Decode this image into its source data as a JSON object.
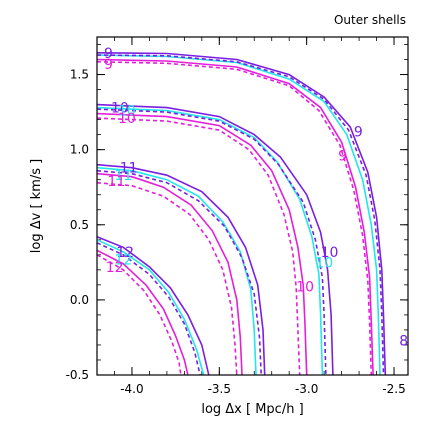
{
  "chart_data": {
    "type": "line",
    "title": "Outer shells",
    "xlabel": "log Δx [ Mpc/h ]",
    "ylabel": "log Δv [ km/s ]",
    "xlim": [
      -4.2,
      -2.42
    ],
    "ylim": [
      -0.5,
      1.75
    ],
    "xticks": [
      "-4.0",
      "-3.5",
      "-3.0",
      "-2.5"
    ],
    "xtick_values": [
      -4.0,
      -3.5,
      -3.0,
      -2.5
    ],
    "yticks": [
      "-0.5",
      "0.0",
      "0.5",
      "1.0",
      "1.5"
    ],
    "ytick_values": [
      -0.5,
      0.0,
      0.5,
      1.0,
      1.5
    ],
    "colors": {
      "purple": "#7a1fe0",
      "cyan": "#22e6ea",
      "magenta": "#e41fd9"
    },
    "series": [
      {
        "level": "9",
        "color": "purple",
        "style": "solid",
        "points": [
          [
            -4.2,
            1.645
          ],
          [
            -3.8,
            1.64
          ],
          [
            -3.4,
            1.6
          ],
          [
            -3.1,
            1.5
          ],
          [
            -2.9,
            1.35
          ],
          [
            -2.75,
            1.15
          ],
          [
            -2.65,
            0.85
          ],
          [
            -2.6,
            0.55
          ],
          [
            -2.57,
            0.2
          ],
          [
            -2.56,
            -0.1
          ],
          [
            -2.55,
            -0.5
          ]
        ]
      },
      {
        "level": "9",
        "color": "cyan",
        "style": "solid",
        "points": [
          [
            -4.2,
            1.63
          ],
          [
            -3.8,
            1.62
          ],
          [
            -3.4,
            1.58
          ],
          [
            -3.1,
            1.47
          ],
          [
            -2.9,
            1.32
          ],
          [
            -2.77,
            1.1
          ],
          [
            -2.68,
            0.8
          ],
          [
            -2.63,
            0.5
          ],
          [
            -2.6,
            0.2
          ],
          [
            -2.59,
            -0.1
          ],
          [
            -2.58,
            -0.5
          ]
        ]
      },
      {
        "level": "9",
        "color": "magenta",
        "style": "solid",
        "points": [
          [
            -4.2,
            1.6
          ],
          [
            -3.8,
            1.59
          ],
          [
            -3.4,
            1.55
          ],
          [
            -3.1,
            1.44
          ],
          [
            -2.92,
            1.28
          ],
          [
            -2.8,
            1.05
          ],
          [
            -2.72,
            0.75
          ],
          [
            -2.67,
            0.45
          ],
          [
            -2.64,
            0.15
          ],
          [
            -2.63,
            -0.15
          ],
          [
            -2.62,
            -0.5
          ]
        ]
      },
      {
        "level": "9",
        "color": "purple",
        "style": "dashed",
        "points": [
          [
            -4.2,
            1.63
          ],
          [
            -3.8,
            1.625
          ],
          [
            -3.4,
            1.585
          ],
          [
            -3.1,
            1.485
          ],
          [
            -2.9,
            1.335
          ],
          [
            -2.76,
            1.13
          ],
          [
            -2.66,
            0.83
          ],
          [
            -2.61,
            0.53
          ],
          [
            -2.58,
            0.2
          ],
          [
            -2.57,
            -0.1
          ],
          [
            -2.56,
            -0.5
          ]
        ]
      },
      {
        "level": "9",
        "color": "magenta",
        "style": "dashed",
        "points": [
          [
            -4.2,
            1.585
          ],
          [
            -3.8,
            1.575
          ],
          [
            -3.4,
            1.535
          ],
          [
            -3.1,
            1.425
          ],
          [
            -2.93,
            1.26
          ],
          [
            -2.81,
            1.03
          ],
          [
            -2.73,
            0.73
          ],
          [
            -2.68,
            0.43
          ],
          [
            -2.65,
            0.13
          ],
          [
            -2.64,
            -0.15
          ],
          [
            -2.63,
            -0.5
          ]
        ]
      },
      {
        "level": "10",
        "color": "purple",
        "style": "solid",
        "points": [
          [
            -4.2,
            1.3
          ],
          [
            -3.8,
            1.28
          ],
          [
            -3.5,
            1.22
          ],
          [
            -3.3,
            1.1
          ],
          [
            -3.15,
            0.95
          ],
          [
            -3.0,
            0.7
          ],
          [
            -2.92,
            0.45
          ],
          [
            -2.88,
            0.2
          ],
          [
            -2.86,
            -0.1
          ],
          [
            -2.85,
            -0.5
          ]
        ]
      },
      {
        "level": "10",
        "color": "cyan",
        "style": "solid",
        "points": [
          [
            -4.2,
            1.28
          ],
          [
            -3.8,
            1.26
          ],
          [
            -3.5,
            1.2
          ],
          [
            -3.3,
            1.08
          ],
          [
            -3.17,
            0.92
          ],
          [
            -3.04,
            0.67
          ],
          [
            -2.97,
            0.42
          ],
          [
            -2.93,
            0.17
          ],
          [
            -2.92,
            -0.1
          ],
          [
            -2.91,
            -0.5
          ]
        ]
      },
      {
        "level": "10",
        "color": "magenta",
        "style": "solid",
        "points": [
          [
            -4.2,
            1.24
          ],
          [
            -3.8,
            1.22
          ],
          [
            -3.5,
            1.16
          ],
          [
            -3.32,
            1.03
          ],
          [
            -3.2,
            0.86
          ],
          [
            -3.1,
            0.6
          ],
          [
            -3.05,
            0.35
          ],
          [
            -3.02,
            0.1
          ],
          [
            -3.01,
            -0.15
          ],
          [
            -3.0,
            -0.5
          ]
        ]
      },
      {
        "level": "10",
        "color": "purple",
        "style": "dashed",
        "points": [
          [
            -4.2,
            1.27
          ],
          [
            -3.8,
            1.25
          ],
          [
            -3.5,
            1.19
          ],
          [
            -3.3,
            1.07
          ],
          [
            -3.16,
            0.9
          ],
          [
            -3.02,
            0.65
          ],
          [
            -2.95,
            0.4
          ],
          [
            -2.91,
            0.15
          ],
          [
            -2.9,
            -0.1
          ],
          [
            -2.89,
            -0.5
          ]
        ]
      },
      {
        "level": "10",
        "color": "magenta",
        "style": "dashed",
        "points": [
          [
            -4.2,
            1.21
          ],
          [
            -3.8,
            1.19
          ],
          [
            -3.5,
            1.13
          ],
          [
            -3.33,
            1.0
          ],
          [
            -3.22,
            0.83
          ],
          [
            -3.13,
            0.57
          ],
          [
            -3.08,
            0.32
          ],
          [
            -3.06,
            0.08
          ],
          [
            -3.05,
            -0.2
          ],
          [
            -3.04,
            -0.5
          ]
        ]
      },
      {
        "level": "11",
        "color": "purple",
        "style": "solid",
        "points": [
          [
            -4.2,
            0.9
          ],
          [
            -4.0,
            0.88
          ],
          [
            -3.8,
            0.83
          ],
          [
            -3.6,
            0.72
          ],
          [
            -3.45,
            0.55
          ],
          [
            -3.35,
            0.35
          ],
          [
            -3.28,
            0.1
          ],
          [
            -3.25,
            -0.2
          ],
          [
            -3.24,
            -0.5
          ]
        ]
      },
      {
        "level": "11",
        "color": "cyan",
        "style": "solid",
        "points": [
          [
            -4.2,
            0.88
          ],
          [
            -4.0,
            0.86
          ],
          [
            -3.8,
            0.8
          ],
          [
            -3.62,
            0.69
          ],
          [
            -3.48,
            0.52
          ],
          [
            -3.38,
            0.32
          ],
          [
            -3.32,
            0.07
          ],
          [
            -3.3,
            -0.2
          ],
          [
            -3.29,
            -0.5
          ]
        ]
      },
      {
        "level": "11",
        "color": "magenta",
        "style": "solid",
        "points": [
          [
            -4.2,
            0.84
          ],
          [
            -4.0,
            0.82
          ],
          [
            -3.82,
            0.75
          ],
          [
            -3.66,
            0.63
          ],
          [
            -3.54,
            0.46
          ],
          [
            -3.45,
            0.25
          ],
          [
            -3.4,
            0.0
          ],
          [
            -3.38,
            -0.25
          ],
          [
            -3.37,
            -0.5
          ]
        ]
      },
      {
        "level": "11",
        "color": "purple",
        "style": "dashed",
        "points": [
          [
            -4.2,
            0.86
          ],
          [
            -4.0,
            0.84
          ],
          [
            -3.8,
            0.78
          ],
          [
            -3.62,
            0.66
          ],
          [
            -3.47,
            0.49
          ],
          [
            -3.37,
            0.28
          ],
          [
            -3.3,
            0.04
          ],
          [
            -3.27,
            -0.25
          ],
          [
            -3.26,
            -0.5
          ]
        ]
      },
      {
        "level": "11",
        "color": "magenta",
        "style": "dashed",
        "points": [
          [
            -4.2,
            0.78
          ],
          [
            -4.0,
            0.76
          ],
          [
            -3.82,
            0.69
          ],
          [
            -3.67,
            0.57
          ],
          [
            -3.56,
            0.4
          ],
          [
            -3.48,
            0.2
          ],
          [
            -3.43,
            -0.05
          ],
          [
            -3.41,
            -0.3
          ],
          [
            -3.4,
            -0.5
          ]
        ]
      },
      {
        "level": "12",
        "color": "purple",
        "style": "solid",
        "points": [
          [
            -4.2,
            0.42
          ],
          [
            -4.05,
            0.35
          ],
          [
            -3.9,
            0.22
          ],
          [
            -3.78,
            0.08
          ],
          [
            -3.68,
            -0.1
          ],
          [
            -3.6,
            -0.3
          ],
          [
            -3.56,
            -0.5
          ]
        ]
      },
      {
        "level": "12",
        "color": "cyan",
        "style": "solid",
        "points": [
          [
            -4.2,
            0.4
          ],
          [
            -4.05,
            0.32
          ],
          [
            -3.9,
            0.2
          ],
          [
            -3.79,
            0.05
          ],
          [
            -3.7,
            -0.13
          ],
          [
            -3.63,
            -0.33
          ],
          [
            -3.59,
            -0.5
          ]
        ]
      },
      {
        "level": "12",
        "color": "magenta",
        "style": "solid",
        "points": [
          [
            -4.2,
            0.33
          ],
          [
            -4.05,
            0.24
          ],
          [
            -3.92,
            0.1
          ],
          [
            -3.82,
            -0.06
          ],
          [
            -3.75,
            -0.24
          ],
          [
            -3.7,
            -0.4
          ],
          [
            -3.68,
            -0.5
          ]
        ]
      },
      {
        "level": "12",
        "color": "purple",
        "style": "dashed",
        "points": [
          [
            -4.2,
            0.38
          ],
          [
            -4.05,
            0.3
          ],
          [
            -3.9,
            0.17
          ],
          [
            -3.79,
            0.02
          ],
          [
            -3.7,
            -0.16
          ],
          [
            -3.64,
            -0.35
          ],
          [
            -3.61,
            -0.5
          ]
        ]
      },
      {
        "level": "12",
        "color": "magenta",
        "style": "dashed",
        "points": [
          [
            -4.2,
            0.3
          ],
          [
            -4.05,
            0.2
          ],
          [
            -3.93,
            0.06
          ],
          [
            -3.84,
            -0.1
          ],
          [
            -3.77,
            -0.28
          ],
          [
            -3.73,
            -0.42
          ],
          [
            -3.72,
            -0.5
          ]
        ]
      }
    ],
    "labels": [
      {
        "text": "9",
        "color": "purple",
        "x": -4.16,
        "y": 1.645
      },
      {
        "text": "9",
        "color": "magenta",
        "x": -4.16,
        "y": 1.57
      },
      {
        "text": "9",
        "color": "purple",
        "x": -2.73,
        "y": 1.12
      },
      {
        "text": "9",
        "color": "magenta",
        "x": -2.82,
        "y": 0.96
      },
      {
        "text": "8",
        "color": "purple",
        "x": -2.47,
        "y": -0.27
      },
      {
        "text": "10",
        "color": "purple",
        "x": -4.12,
        "y": 1.28
      },
      {
        "text": "10",
        "color": "cyan",
        "x": -4.08,
        "y": 1.26
      },
      {
        "text": "10",
        "color": "magenta",
        "x": -4.08,
        "y": 1.21
      },
      {
        "text": "10",
        "color": "purple",
        "x": -2.92,
        "y": 0.32
      },
      {
        "text": "10",
        "color": "cyan",
        "x": -2.95,
        "y": 0.25
      },
      {
        "text": "10",
        "color": "magenta",
        "x": -3.06,
        "y": 0.09
      },
      {
        "text": "11",
        "color": "purple",
        "x": -4.07,
        "y": 0.88
      },
      {
        "text": "11",
        "color": "cyan",
        "x": -4.1,
        "y": 0.83
      },
      {
        "text": "11",
        "color": "magenta",
        "x": -4.14,
        "y": 0.79
      },
      {
        "text": "12",
        "color": "purple",
        "x": -4.09,
        "y": 0.32
      },
      {
        "text": "12",
        "color": "cyan",
        "x": -4.1,
        "y": 0.27
      },
      {
        "text": "12",
        "color": "magenta",
        "x": -4.15,
        "y": 0.22
      }
    ]
  }
}
